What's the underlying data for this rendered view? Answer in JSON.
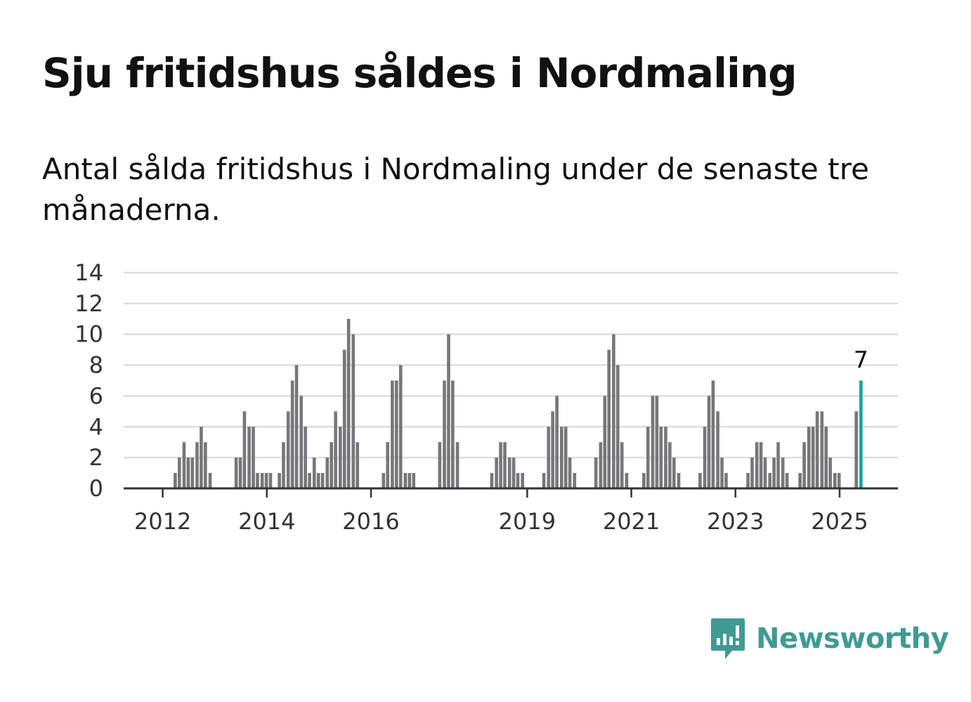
{
  "title": "Sju fritidshus såldes i Nordmaling",
  "subtitle": "Antal sålda fritidshus i Nordmaling under de senaste tre månaderna.",
  "logo": {
    "text": "Newsworthy",
    "icon": "newsworthy-bar-chart-icon",
    "color": "#3f9a93"
  },
  "chart_data": {
    "type": "bar",
    "title": "",
    "xlabel": "",
    "ylabel": "",
    "ylim": [
      0,
      14
    ],
    "yticks": [
      0,
      2,
      4,
      6,
      8,
      10,
      12,
      14
    ],
    "xticks": [
      {
        "value": 2012,
        "label": "2012"
      },
      {
        "value": 2014,
        "label": "2014"
      },
      {
        "value": 2016,
        "label": "2016"
      },
      {
        "value": 2019,
        "label": "2019"
      },
      {
        "value": 2021,
        "label": "2021"
      },
      {
        "value": 2023,
        "label": "2023"
      },
      {
        "value": 2025,
        "label": "2025"
      }
    ],
    "x_range": [
      2011.25,
      2026.12
    ],
    "grid": true,
    "bar_color": "#76767b",
    "highlight_color": "#17a2a0",
    "highlight_label": "7",
    "series": [
      {
        "values": [
          {
            "x": 2012.24,
            "y": 1
          },
          {
            "x": 2012.32,
            "y": 2
          },
          {
            "x": 2012.41,
            "y": 3
          },
          {
            "x": 2012.49,
            "y": 2
          },
          {
            "x": 2012.57,
            "y": 2
          },
          {
            "x": 2012.66,
            "y": 3
          },
          {
            "x": 2012.74,
            "y": 4
          },
          {
            "x": 2012.82,
            "y": 3
          },
          {
            "x": 2012.91,
            "y": 1
          },
          {
            "x": 2013.41,
            "y": 2
          },
          {
            "x": 2013.49,
            "y": 2
          },
          {
            "x": 2013.57,
            "y": 5
          },
          {
            "x": 2013.66,
            "y": 4
          },
          {
            "x": 2013.74,
            "y": 4
          },
          {
            "x": 2013.82,
            "y": 1
          },
          {
            "x": 2013.91,
            "y": 1
          },
          {
            "x": 2013.99,
            "y": 1
          },
          {
            "x": 2014.07,
            "y": 1
          },
          {
            "x": 2014.24,
            "y": 1
          },
          {
            "x": 2014.32,
            "y": 3
          },
          {
            "x": 2014.41,
            "y": 5
          },
          {
            "x": 2014.49,
            "y": 7
          },
          {
            "x": 2014.57,
            "y": 8
          },
          {
            "x": 2014.66,
            "y": 6
          },
          {
            "x": 2014.74,
            "y": 4
          },
          {
            "x": 2014.82,
            "y": 1
          },
          {
            "x": 2014.91,
            "y": 2
          },
          {
            "x": 2014.99,
            "y": 1
          },
          {
            "x": 2015.07,
            "y": 1
          },
          {
            "x": 2015.16,
            "y": 2
          },
          {
            "x": 2015.24,
            "y": 3
          },
          {
            "x": 2015.32,
            "y": 5
          },
          {
            "x": 2015.41,
            "y": 4
          },
          {
            "x": 2015.49,
            "y": 9
          },
          {
            "x": 2015.57,
            "y": 11
          },
          {
            "x": 2015.66,
            "y": 10
          },
          {
            "x": 2015.74,
            "y": 3
          },
          {
            "x": 2016.24,
            "y": 1
          },
          {
            "x": 2016.32,
            "y": 3
          },
          {
            "x": 2016.41,
            "y": 7
          },
          {
            "x": 2016.49,
            "y": 7
          },
          {
            "x": 2016.57,
            "y": 8
          },
          {
            "x": 2016.66,
            "y": 1
          },
          {
            "x": 2016.74,
            "y": 1
          },
          {
            "x": 2016.82,
            "y": 1
          },
          {
            "x": 2017.32,
            "y": 3
          },
          {
            "x": 2017.41,
            "y": 7
          },
          {
            "x": 2017.49,
            "y": 10
          },
          {
            "x": 2017.57,
            "y": 7
          },
          {
            "x": 2017.66,
            "y": 3
          },
          {
            "x": 2018.32,
            "y": 1
          },
          {
            "x": 2018.41,
            "y": 2
          },
          {
            "x": 2018.49,
            "y": 3
          },
          {
            "x": 2018.57,
            "y": 3
          },
          {
            "x": 2018.66,
            "y": 2
          },
          {
            "x": 2018.74,
            "y": 2
          },
          {
            "x": 2018.82,
            "y": 1
          },
          {
            "x": 2018.91,
            "y": 1
          },
          {
            "x": 2019.32,
            "y": 1
          },
          {
            "x": 2019.41,
            "y": 4
          },
          {
            "x": 2019.49,
            "y": 5
          },
          {
            "x": 2019.57,
            "y": 6
          },
          {
            "x": 2019.66,
            "y": 4
          },
          {
            "x": 2019.74,
            "y": 4
          },
          {
            "x": 2019.82,
            "y": 2
          },
          {
            "x": 2019.91,
            "y": 1
          },
          {
            "x": 2020.32,
            "y": 2
          },
          {
            "x": 2020.41,
            "y": 3
          },
          {
            "x": 2020.49,
            "y": 6
          },
          {
            "x": 2020.57,
            "y": 9
          },
          {
            "x": 2020.66,
            "y": 10
          },
          {
            "x": 2020.74,
            "y": 8
          },
          {
            "x": 2020.82,
            "y": 3
          },
          {
            "x": 2020.91,
            "y": 1
          },
          {
            "x": 2021.24,
            "y": 1
          },
          {
            "x": 2021.32,
            "y": 4
          },
          {
            "x": 2021.41,
            "y": 6
          },
          {
            "x": 2021.49,
            "y": 6
          },
          {
            "x": 2021.57,
            "y": 4
          },
          {
            "x": 2021.66,
            "y": 4
          },
          {
            "x": 2021.74,
            "y": 3
          },
          {
            "x": 2021.82,
            "y": 2
          },
          {
            "x": 2021.91,
            "y": 1
          },
          {
            "x": 2022.32,
            "y": 1
          },
          {
            "x": 2022.41,
            "y": 4
          },
          {
            "x": 2022.49,
            "y": 6
          },
          {
            "x": 2022.57,
            "y": 7
          },
          {
            "x": 2022.66,
            "y": 5
          },
          {
            "x": 2022.74,
            "y": 2
          },
          {
            "x": 2022.82,
            "y": 1
          },
          {
            "x": 2023.24,
            "y": 1
          },
          {
            "x": 2023.32,
            "y": 2
          },
          {
            "x": 2023.41,
            "y": 3
          },
          {
            "x": 2023.49,
            "y": 3
          },
          {
            "x": 2023.57,
            "y": 2
          },
          {
            "x": 2023.66,
            "y": 1
          },
          {
            "x": 2023.74,
            "y": 2
          },
          {
            "x": 2023.82,
            "y": 3
          },
          {
            "x": 2023.91,
            "y": 2
          },
          {
            "x": 2023.99,
            "y": 1
          },
          {
            "x": 2024.24,
            "y": 1
          },
          {
            "x": 2024.32,
            "y": 3
          },
          {
            "x": 2024.41,
            "y": 4
          },
          {
            "x": 2024.49,
            "y": 4
          },
          {
            "x": 2024.57,
            "y": 5
          },
          {
            "x": 2024.66,
            "y": 5
          },
          {
            "x": 2024.74,
            "y": 4
          },
          {
            "x": 2024.82,
            "y": 2
          },
          {
            "x": 2024.91,
            "y": 1
          },
          {
            "x": 2024.99,
            "y": 1
          },
          {
            "x": 2025.32,
            "y": 5
          },
          {
            "x": 2025.41,
            "y": 7,
            "highlight": true
          }
        ]
      }
    ]
  }
}
